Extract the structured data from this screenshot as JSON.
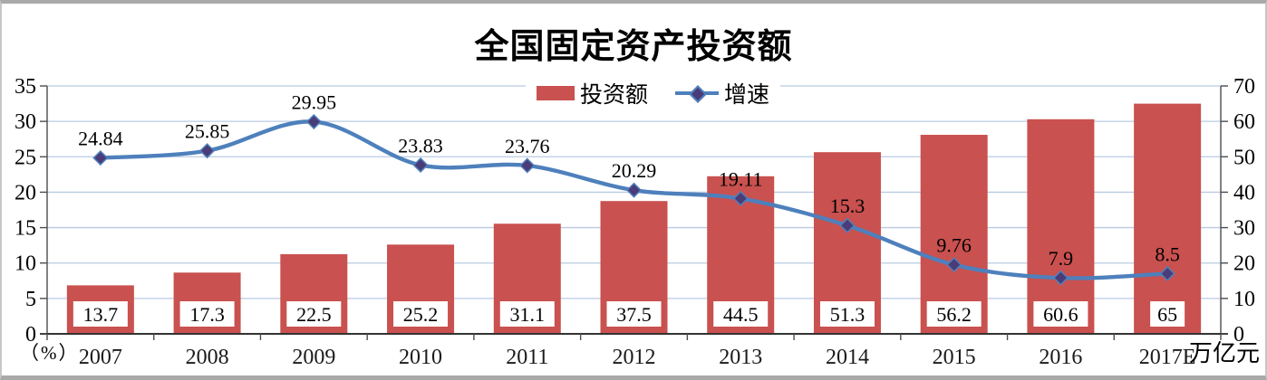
{
  "chart_data": {
    "type": "bar",
    "subtype": "combo-bar-line",
    "title": "全国固定资产投资额",
    "categories": [
      "2007",
      "2008",
      "2009",
      "2010",
      "2011",
      "2012",
      "2013",
      "2014",
      "2015",
      "2016",
      "2017E"
    ],
    "series": [
      {
        "name": "投资额",
        "type": "bar",
        "axis": "right",
        "color": "#C9514F",
        "values": [
          13.7,
          17.3,
          22.5,
          25.2,
          31.1,
          37.5,
          44.5,
          51.3,
          56.2,
          60.6,
          65
        ],
        "label_style": "white-box-inside-bar-bottom"
      },
      {
        "name": "增速",
        "type": "line",
        "axis": "left",
        "color": "#4E80BC",
        "marker": "diamond",
        "marker_color": "#4A3C78",
        "values": [
          24.84,
          25.85,
          29.95,
          23.83,
          23.76,
          20.29,
          19.11,
          15.3,
          9.76,
          7.9,
          8.5
        ],
        "label_style": "above-point"
      }
    ],
    "left_axis": {
      "label": "（%）",
      "min": 0,
      "max": 35,
      "step": 5,
      "ticks": [
        0,
        5,
        10,
        15,
        20,
        25,
        30,
        35
      ]
    },
    "right_axis": {
      "label": "万亿元",
      "min": 0,
      "max": 70,
      "step": 10,
      "ticks": [
        0,
        10,
        20,
        30,
        40,
        50,
        60,
        70
      ]
    },
    "grid": true,
    "gridline_color": "#B9CBE2",
    "axis_color": "#4d4d4d",
    "bottom_axis_color": "#333333",
    "legend_position": "top-center",
    "text_color": "#000000",
    "background": "#ffffff"
  }
}
